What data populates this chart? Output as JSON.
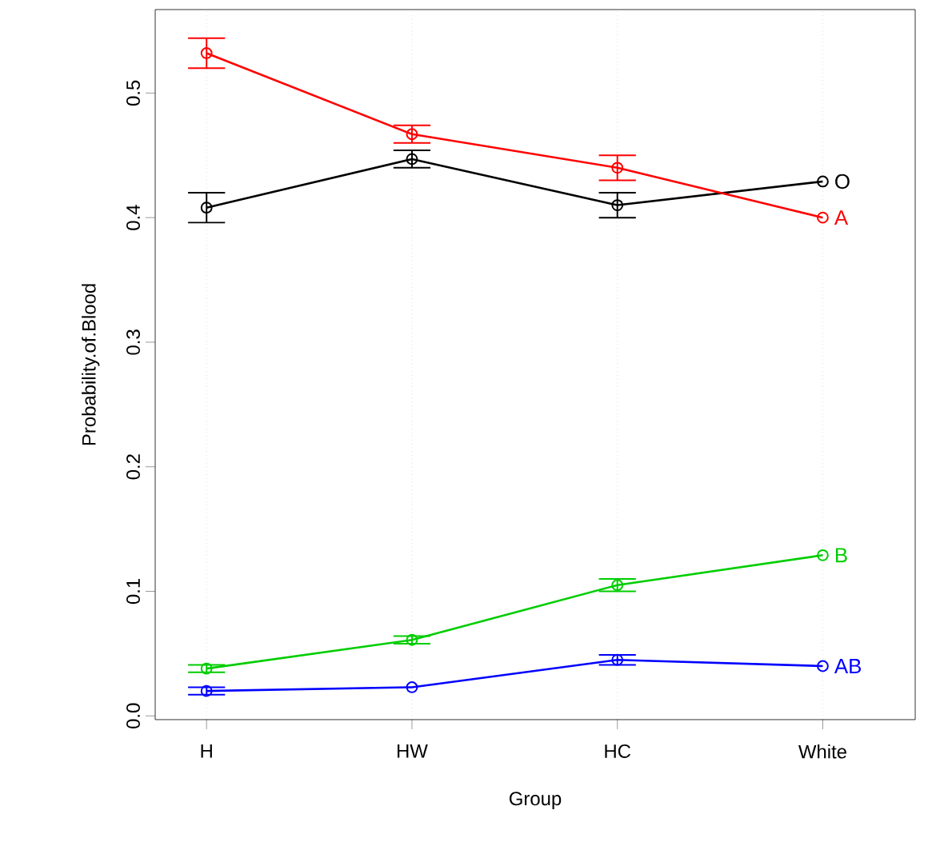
{
  "chart_data": {
    "type": "line",
    "xlabel": "Group",
    "ylabel": "Probability.of.Blood",
    "categories": [
      "H",
      "HW",
      "HC",
      "White"
    ],
    "ylim": [
      -0.003,
      0.567
    ],
    "yticks": [
      {
        "value": 0,
        "label": "0.0"
      },
      {
        "value": 0.1,
        "label": "0.1"
      },
      {
        "value": 0.2,
        "label": "0.2"
      },
      {
        "value": 0.3,
        "label": "0.3"
      },
      {
        "value": 0.4,
        "label": "0.4"
      },
      {
        "value": 0.5,
        "label": "0.5"
      }
    ],
    "grid": "x",
    "marker": "circle",
    "line_style": "solid",
    "series": [
      {
        "name": "O",
        "color": "#000000",
        "values": [
          0.408,
          0.447,
          0.41,
          0.429
        ],
        "errors": [
          0.012,
          0.007,
          0.01,
          null
        ]
      },
      {
        "name": "A",
        "color": "#ff0000",
        "values": [
          0.532,
          0.467,
          0.44,
          0.4
        ],
        "errors": [
          0.012,
          0.007,
          0.01,
          null
        ]
      },
      {
        "name": "B",
        "color": "#00cd00",
        "values": [
          0.038,
          0.061,
          0.105,
          0.129
        ],
        "errors": [
          0.003,
          0.003,
          0.005,
          null
        ]
      },
      {
        "name": "AB",
        "color": "#0000ff",
        "values": [
          0.02,
          0.023,
          0.045,
          0.04
        ],
        "errors": [
          0.003,
          null,
          0.004,
          null
        ]
      }
    ]
  }
}
